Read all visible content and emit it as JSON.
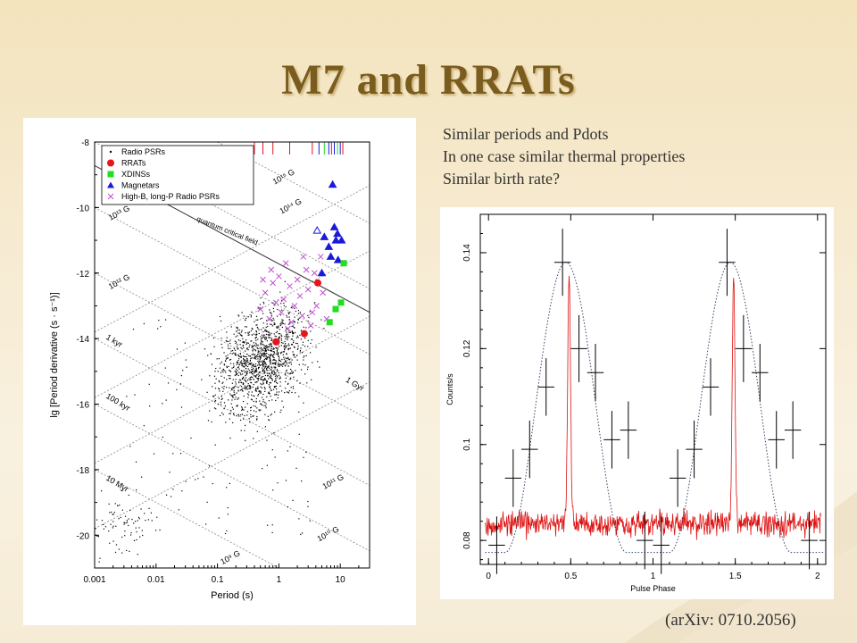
{
  "slide": {
    "title": "M7 and RRATs",
    "bullets": [
      "Similar periods and Pdots",
      "In one case similar thermal properties",
      "Similar birth rate?"
    ],
    "reference": "(arXiv: 0710.2056)",
    "colors": {
      "title": "#7a5c1e",
      "text": "#333333"
    }
  },
  "chart_data": [
    {
      "type": "scatter",
      "title": "",
      "xlabel": "Period (s)",
      "ylabel": "lg [Period derivative (s · s⁻¹)]",
      "x_scale": "log",
      "xlim": [
        0.001,
        30
      ],
      "ylim": [
        -21,
        -8
      ],
      "x_ticks": [
        "0.001",
        "0.01",
        "0.1",
        "1",
        "10"
      ],
      "y_ticks": [
        "-8",
        "-10",
        "-12",
        "-14",
        "-16",
        "-18",
        "-20"
      ],
      "legend": {
        "position": "top-left",
        "entries": [
          "Radio PSRs",
          "RRATs",
          "XDINSs",
          "Magnetars",
          "High-B, long-P Radio PSRs"
        ]
      },
      "colors": {
        "Radio PSRs": "#000000",
        "RRATs": "#e8141b",
        "XDINSs": "#22dd22",
        "Magnetars": "#1a1adb",
        "High-B, long-P Radio PSRs": "#c04fd0"
      },
      "field_lines": [
        {
          "label": "10¹⁵ G",
          "b": 15
        },
        {
          "label": "10¹⁴ G",
          "b": 14
        },
        {
          "label": "10¹³ G",
          "b": 13
        },
        {
          "label": "10¹² G",
          "b": 12
        },
        {
          "label": "10¹¹ G",
          "b": 11
        },
        {
          "label": "10¹⁰ G",
          "b": 10
        },
        {
          "label": "10⁹ G",
          "b": 9
        }
      ],
      "age_lines": [
        {
          "label": "1 kyr",
          "log_age_yr": 3
        },
        {
          "label": "100 kyr",
          "log_age_yr": 5
        },
        {
          "label": "10 Myr",
          "log_age_yr": 7
        },
        {
          "label": "1 Gyr",
          "log_age_yr": 9
        }
      ],
      "quantum_critical_field": {
        "label": "quantum critical field",
        "b": 13.64
      },
      "series": [
        {
          "name": "RRATs",
          "points": [
            {
              "x": 0.9,
              "y": -14.1
            },
            {
              "x": 2.6,
              "y": -13.85
            },
            {
              "x": 4.3,
              "y": -12.3
            }
          ]
        },
        {
          "name": "XDINSs",
          "points": [
            {
              "x": 6.7,
              "y": -13.5
            },
            {
              "x": 8.4,
              "y": -13.1
            },
            {
              "x": 10.3,
              "y": -12.9
            },
            {
              "x": 11.4,
              "y": -11.7
            }
          ]
        },
        {
          "name": "Magnetars",
          "points": [
            {
              "x": 5.5,
              "y": -10.9
            },
            {
              "x": 6.5,
              "y": -11.2
            },
            {
              "x": 7.5,
              "y": -9.3
            },
            {
              "x": 8.0,
              "y": -10.6
            },
            {
              "x": 9.0,
              "y": -10.8
            },
            {
              "x": 7.0,
              "y": -11.5
            },
            {
              "x": 8.5,
              "y": -11.0
            },
            {
              "x": 10.5,
              "y": -11.0
            },
            {
              "x": 5.0,
              "y": -12.0
            },
            {
              "x": 4.2,
              "y": -10.7
            },
            {
              "x": 9.2,
              "y": -11.6
            }
          ]
        },
        {
          "name": "High-B, long-P Radio PSRs",
          "points": [
            {
              "x": 0.5,
              "y": -13.1
            },
            {
              "x": 0.6,
              "y": -12.6
            },
            {
              "x": 0.7,
              "y": -13.4
            },
            {
              "x": 0.8,
              "y": -12.3
            },
            {
              "x": 0.9,
              "y": -12.9
            },
            {
              "x": 1.0,
              "y": -12.1
            },
            {
              "x": 1.1,
              "y": -13.2
            },
            {
              "x": 1.2,
              "y": -12.8
            },
            {
              "x": 1.3,
              "y": -11.7
            },
            {
              "x": 1.5,
              "y": -12.4
            },
            {
              "x": 1.6,
              "y": -13.5
            },
            {
              "x": 1.8,
              "y": -13.0
            },
            {
              "x": 2.0,
              "y": -12.2
            },
            {
              "x": 2.2,
              "y": -12.7
            },
            {
              "x": 2.4,
              "y": -13.3
            },
            {
              "x": 2.8,
              "y": -11.9
            },
            {
              "x": 3.0,
              "y": -12.5
            },
            {
              "x": 3.3,
              "y": -13.6
            },
            {
              "x": 3.8,
              "y": -12.0
            },
            {
              "x": 4.1,
              "y": -13.0
            },
            {
              "x": 4.8,
              "y": -11.5
            },
            {
              "x": 5.2,
              "y": -12.6
            },
            {
              "x": 6.0,
              "y": -13.4
            },
            {
              "x": 0.75,
              "y": -11.9
            },
            {
              "x": 1.4,
              "y": -13.7
            },
            {
              "x": 2.5,
              "y": -11.5
            },
            {
              "x": 0.55,
              "y": -12.2
            },
            {
              "x": 3.5,
              "y": -13.2
            }
          ]
        }
      ]
    },
    {
      "type": "line",
      "title": "",
      "xlabel": "Pulse Phase",
      "ylabel": "Counts/s",
      "xlim": [
        -0.05,
        2.05
      ],
      "ylim": [
        0.075,
        0.148
      ],
      "x_ticks": [
        "0",
        "0.5",
        "1",
        "1.5",
        "2"
      ],
      "y_ticks": [
        "0.08",
        "0.1",
        "0.12",
        "0.14"
      ],
      "colors": {
        "binned": "#000000",
        "model": "#334466",
        "high_res": "#dd1111"
      },
      "series": [
        {
          "name": "",
          "x": [
            0.05,
            0.15,
            0.25,
            0.35,
            0.45,
            0.55,
            0.65,
            0.75,
            0.85,
            0.95,
            1.05,
            1.15,
            1.25,
            1.35,
            1.45,
            1.55,
            1.65,
            1.75,
            1.85,
            1.95
          ],
          "y": [
            0.079,
            0.093,
            0.099,
            0.112,
            0.138,
            0.12,
            0.115,
            0.101,
            0.103,
            0.08,
            0.079,
            0.093,
            0.099,
            0.112,
            0.138,
            0.12,
            0.115,
            0.101,
            0.103,
            0.08
          ],
          "yerr": [
            0.006,
            0.006,
            0.006,
            0.006,
            0.007,
            0.007,
            0.006,
            0.006,
            0.006,
            0.006,
            0.006,
            0.006,
            0.006,
            0.006,
            0.007,
            0.007,
            0.006,
            0.006,
            0.006,
            0.006
          ]
        }
      ]
    }
  ]
}
